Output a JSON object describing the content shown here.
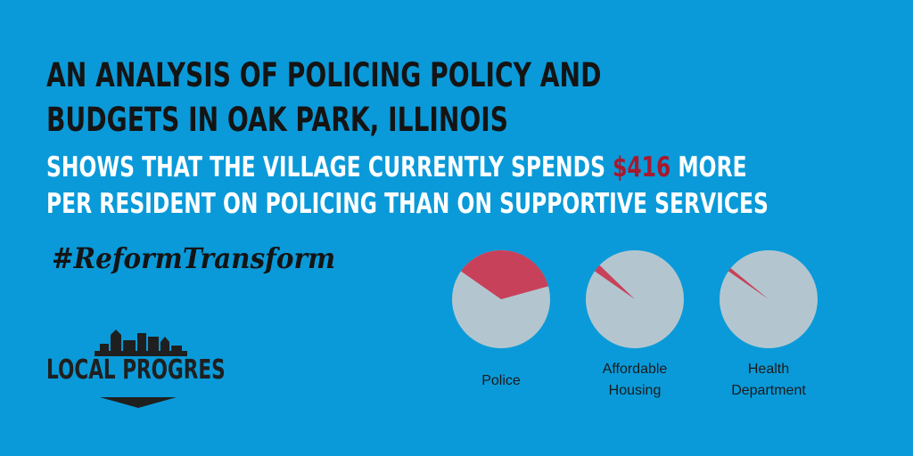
{
  "headline": {
    "line1": "AN ANALYSIS OF POLICING POLICY AND",
    "line2": "BUDGETS IN OAK PARK, ILLINOIS"
  },
  "subhead": {
    "line1_before": "SHOWS THAT THE VILLAGE CURRENTLY SPENDS ",
    "amount": "$416",
    "line1_after": " MORE",
    "line2": "PER RESIDENT ON POLICING THAN ON SUPPORTIVE SERVICES"
  },
  "hashtag": "#ReformTransform",
  "logo": {
    "text": "LOCAL PROGRES"
  },
  "colors": {
    "background": "#0a9ad9",
    "highlight": "#a8182e",
    "slice": "#c8415a",
    "remainder": "#b3c6cf"
  },
  "chart_data": {
    "type": "pie",
    "charts": [
      {
        "label_lines": [
          "Police"
        ],
        "share": 0.36
      },
      {
        "label_lines": [
          "Affordable",
          "Housing"
        ],
        "share": 0.025
      },
      {
        "label_lines": [
          "Health",
          "Department"
        ],
        "share": 0.012
      }
    ]
  }
}
